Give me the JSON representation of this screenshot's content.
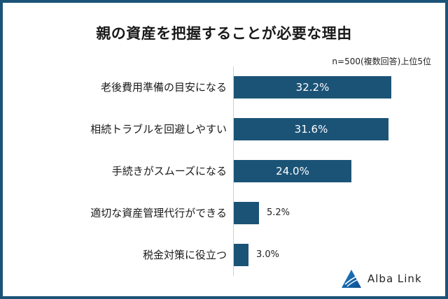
{
  "chart_data": {
    "type": "bar",
    "orientation": "horizontal",
    "title": "親の資産を把握することが必要な理由",
    "subtitle": "n=500(複数回答)上位5位",
    "categories": [
      "老後費用準備の目安になる",
      "相続トラブルを回避しやすい",
      "手続きがスムーズになる",
      "適切な資産管理代行ができる",
      "税金対策に役立つ"
    ],
    "values": [
      32.2,
      31.6,
      24.0,
      5.2,
      3.0
    ],
    "value_labels": [
      "32.2%",
      "31.6%",
      "24.0%",
      "5.2%",
      "3.0%"
    ],
    "xlabel": "",
    "ylabel": "",
    "unit": "%",
    "xlim": [
      0,
      32.2
    ],
    "grid": false,
    "legend": null,
    "bar_color": "#1b5376"
  },
  "header": {
    "title": "親の資産を把握することが必要な理由",
    "note": "n=500(複数回答)上位5位"
  },
  "brand": {
    "name": "Alba Link",
    "icon": "mountain-triangle-icon",
    "color": "#1b5376"
  },
  "frame_color": "#1b5376"
}
